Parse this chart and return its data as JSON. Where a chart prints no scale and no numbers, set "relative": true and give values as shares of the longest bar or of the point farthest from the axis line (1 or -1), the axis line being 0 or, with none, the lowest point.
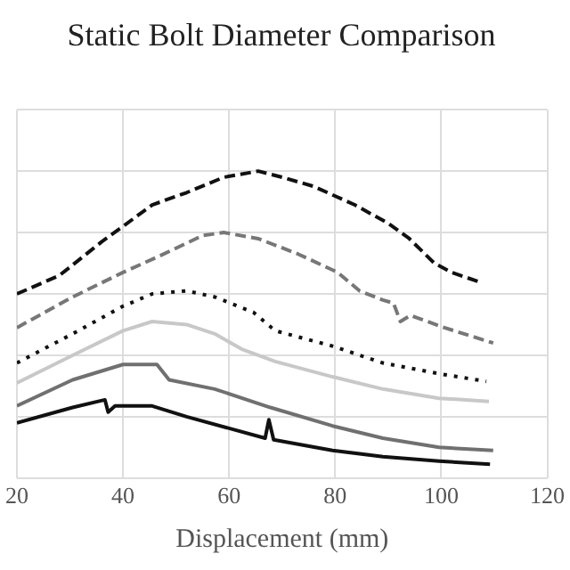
{
  "chart_data": {
    "type": "line",
    "title": "Static Bolt Diameter Comparison",
    "xlabel": "Displacement (mm)",
    "relative": true,
    "xlim": [
      20,
      120
    ],
    "xticks": [
      20,
      40,
      60,
      80,
      100,
      120
    ],
    "grid": true,
    "legend": false,
    "tick_labels": "x",
    "marker": "none",
    "series": [
      {
        "color": "#111111",
        "line_style": "dashed",
        "x": [
          20,
          28,
          36,
          40,
          45.5,
          52,
          59,
          65.5,
          70,
          76,
          83.7,
          90,
          94,
          98.7,
          102,
          107
        ],
        "values": [
          0.6,
          0.66,
          0.77,
          0.82,
          0.89,
          0.93,
          0.98,
          1,
          0.98,
          0.95,
          0.89,
          0.83,
          0.78,
          0.7,
          0.67,
          0.64
        ]
      },
      {
        "color": "#777777",
        "line_style": "dashed",
        "x": [
          20,
          30.5,
          40,
          47.7,
          55,
          59,
          65.5,
          73,
          80.5,
          84.6,
          89,
          91,
          92.3,
          94.2,
          100.6,
          109.8
        ],
        "values": [
          0.49,
          0.59,
          0.67,
          0.73,
          0.79,
          0.8,
          0.78,
          0.73,
          0.67,
          0.61,
          0.58,
          0.57,
          0.51,
          0.53,
          0.49,
          0.44
        ]
      },
      {
        "color": "#111111",
        "line_style": "dotted",
        "x": [
          20,
          30.5,
          40,
          45.5,
          52,
          57.3,
          64.6,
          68.7,
          79.5,
          89,
          99.6,
          108.5
        ],
        "values": [
          0.375,
          0.47,
          0.56,
          0.6,
          0.61,
          0.59,
          0.54,
          0.48,
          0.43,
          0.375,
          0.34,
          0.315
        ]
      },
      {
        "color": "#c8c8c8",
        "line_style": "solid",
        "x": [
          20,
          30.5,
          40,
          45.5,
          52,
          57.3,
          62.4,
          68.7,
          79.5,
          89,
          99.6,
          109
        ],
        "values": [
          0.31,
          0.4,
          0.48,
          0.51,
          0.5,
          0.47,
          0.42,
          0.38,
          0.33,
          0.29,
          0.26,
          0.25
        ]
      },
      {
        "color": "#707070",
        "line_style": "solid",
        "x": [
          20,
          30.5,
          40,
          46.4,
          48.7,
          57.3,
          67.8,
          79.5,
          89,
          99.6,
          109.8
        ],
        "values": [
          0.235,
          0.32,
          0.37,
          0.37,
          0.32,
          0.29,
          0.23,
          0.17,
          0.13,
          0.1,
          0.09
        ]
      },
      {
        "color": "#111111",
        "line_style": "solid",
        "x": [
          20,
          30.5,
          36.6,
          37.2,
          38.5,
          45.5,
          52,
          66.8,
          67.5,
          68.4,
          79.5,
          89,
          99.6,
          109.2
        ],
        "values": [
          0.18,
          0.23,
          0.255,
          0.215,
          0.235,
          0.235,
          0.2,
          0.13,
          0.19,
          0.125,
          0.09,
          0.07,
          0.055,
          0.045
        ]
      }
    ]
  }
}
